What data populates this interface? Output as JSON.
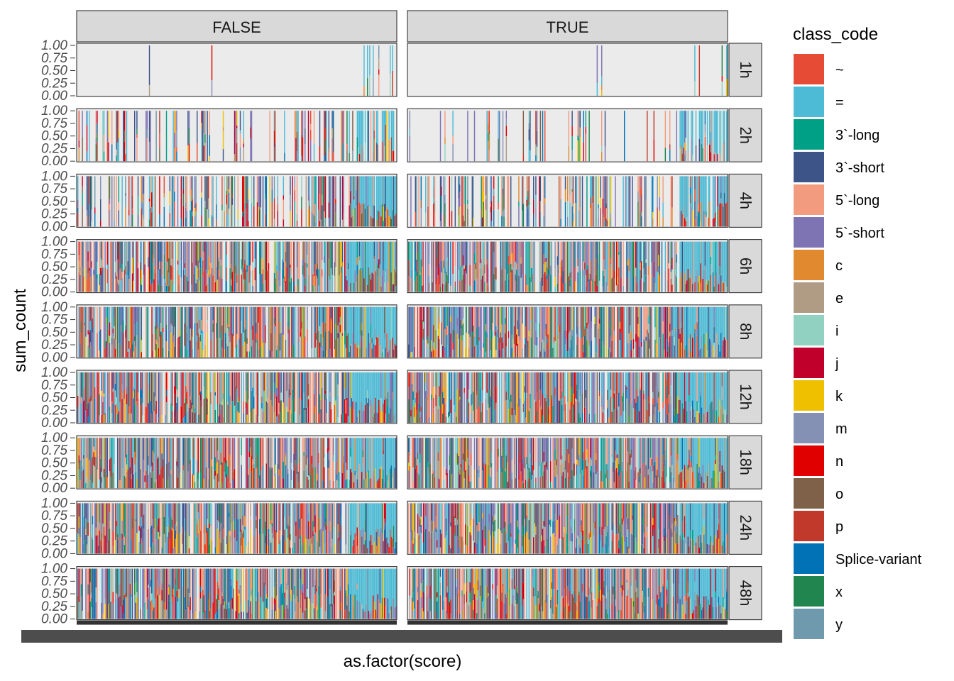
{
  "chart_data": {
    "type": "bar",
    "subtype": "stacked-proportion (position=fill), faceted grid",
    "xlabel": "as.factor(score)",
    "ylabel": "sum_count",
    "y_ticks": [
      "0.00",
      "0.25",
      "0.50",
      "0.75",
      "1.00"
    ],
    "ylim": [
      0,
      1
    ],
    "facet_cols": [
      "FALSE",
      "TRUE"
    ],
    "facet_rows": [
      "1h",
      "2h",
      "4h",
      "6h",
      "8h",
      "12h",
      "18h",
      "24h",
      "48h"
    ],
    "fill_density": {
      "FALSE": [
        0.03,
        0.28,
        0.52,
        0.8,
        0.85,
        0.86,
        0.88,
        0.89,
        0.9
      ],
      "TRUE": [
        0.03,
        0.15,
        0.42,
        0.82,
        0.86,
        0.88,
        0.89,
        0.9,
        0.91
      ]
    },
    "legend": {
      "title": "class_code",
      "position": "right",
      "entries": [
        {
          "label": "~",
          "color": "#E64B35"
        },
        {
          "label": "=",
          "color": "#4DBBD5"
        },
        {
          "label": "3`-long",
          "color": "#00A087"
        },
        {
          "label": "3`-short",
          "color": "#3C5488"
        },
        {
          "label": "5`-long",
          "color": "#F39B7F"
        },
        {
          "label": "5`-short",
          "color": "#7E74B4"
        },
        {
          "label": "c",
          "color": "#E0892E"
        },
        {
          "label": "e",
          "color": "#B09C85"
        },
        {
          "label": "i",
          "color": "#91D1C2"
        },
        {
          "label": "j",
          "color": "#C0002A"
        },
        {
          "label": "k",
          "color": "#EFC000"
        },
        {
          "label": "m",
          "color": "#8491B4"
        },
        {
          "label": "n",
          "color": "#E00000"
        },
        {
          "label": "o",
          "color": "#7E6148"
        },
        {
          "label": "p",
          "color": "#C0392B"
        },
        {
          "label": "Splice-variant",
          "color": "#0072B5"
        },
        {
          "label": "x",
          "color": "#20854E"
        },
        {
          "label": "y",
          "color": "#6F99AD"
        }
      ]
    }
  }
}
